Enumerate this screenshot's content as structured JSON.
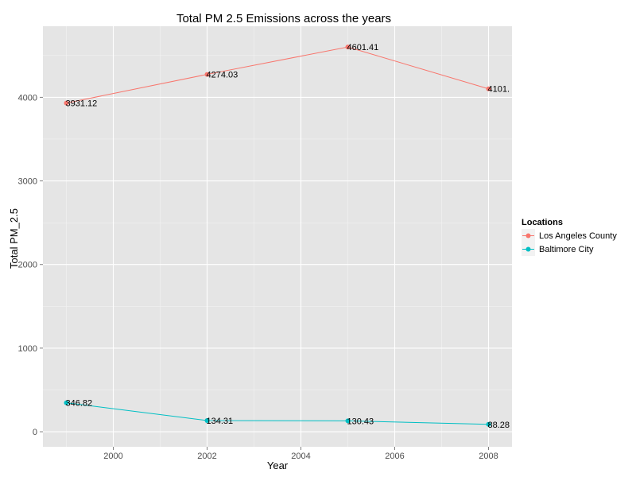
{
  "chart_data": {
    "type": "line",
    "title": "Total PM 2.5 Emissions across the years",
    "xlabel": "Year",
    "ylabel": "Total PM_2.5",
    "xlim": [
      1998.5,
      2008.5
    ],
    "ylim": [
      -180,
      4850
    ],
    "x_ticks": [
      2000,
      2002,
      2004,
      2006,
      2008
    ],
    "x_tick_labels": [
      "2000",
      "2002",
      "2004",
      "2006",
      "2008"
    ],
    "y_ticks": [
      0,
      1000,
      2000,
      3000,
      4000
    ],
    "y_tick_labels": [
      "0",
      "1000",
      "2000",
      "3000",
      "4000"
    ],
    "grid": true,
    "legend_position": "right",
    "legend_title": "Locations",
    "x": [
      1999,
      2002,
      2005,
      2008
    ],
    "series": [
      {
        "name": "Los Angeles County",
        "color": "#F8766D",
        "values": [
          3931.12,
          4274.03,
          4601.41,
          4101.32
        ],
        "labels": [
          "3931.12",
          "4274.03",
          "4601.41",
          "4101."
        ]
      },
      {
        "name": "Baltimore City",
        "color": "#00BFC4",
        "values": [
          346.82,
          134.31,
          130.43,
          88.28
        ],
        "labels": [
          "346.82",
          "134.31",
          "130.43",
          "88.28"
        ]
      }
    ]
  }
}
